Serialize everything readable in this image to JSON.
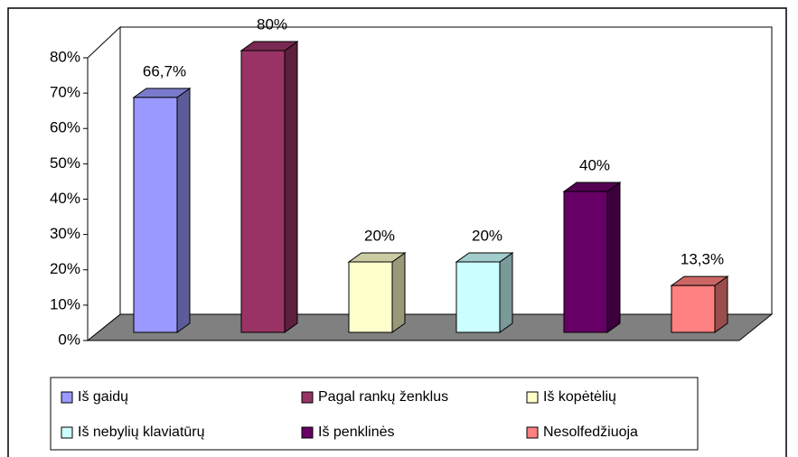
{
  "chart_data": {
    "type": "bar3d",
    "series": [
      {
        "name": "Iš gaidų",
        "color": "#9999ff",
        "values": [
          66.7
        ],
        "value_labels": [
          "66,7%"
        ]
      },
      {
        "name": "Pagal rankų ženklus",
        "color": "#993366",
        "values": [
          80
        ],
        "value_labels": [
          "80%"
        ]
      },
      {
        "name": "Iš kopėtėlių",
        "color": "#ffffcc",
        "values": [
          20
        ],
        "value_labels": [
          "20%"
        ]
      },
      {
        "name": "Iš nebylių klaviatūrų",
        "color": "#ccffff",
        "values": [
          20
        ],
        "value_labels": [
          "20%"
        ]
      },
      {
        "name": "Iš penklinės",
        "color": "#660066",
        "values": [
          40
        ],
        "value_labels": [
          "40%"
        ]
      },
      {
        "name": "Nesolfedžiuoja",
        "color": "#ff8080",
        "values": [
          13.3
        ],
        "value_labels": [
          "13,3%"
        ]
      }
    ],
    "ylim": [
      0,
      80
    ],
    "yticks": [
      {
        "value": 0,
        "label": "0%"
      },
      {
        "value": 10,
        "label": "10%"
      },
      {
        "value": 20,
        "label": "20%"
      },
      {
        "value": 30,
        "label": "30%"
      },
      {
        "value": 40,
        "label": "40%"
      },
      {
        "value": 50,
        "label": "50%"
      },
      {
        "value": 60,
        "label": "60%"
      },
      {
        "value": 70,
        "label": "70%"
      },
      {
        "value": 80,
        "label": "80%"
      }
    ],
    "grid": false,
    "legend": "bottom"
  }
}
